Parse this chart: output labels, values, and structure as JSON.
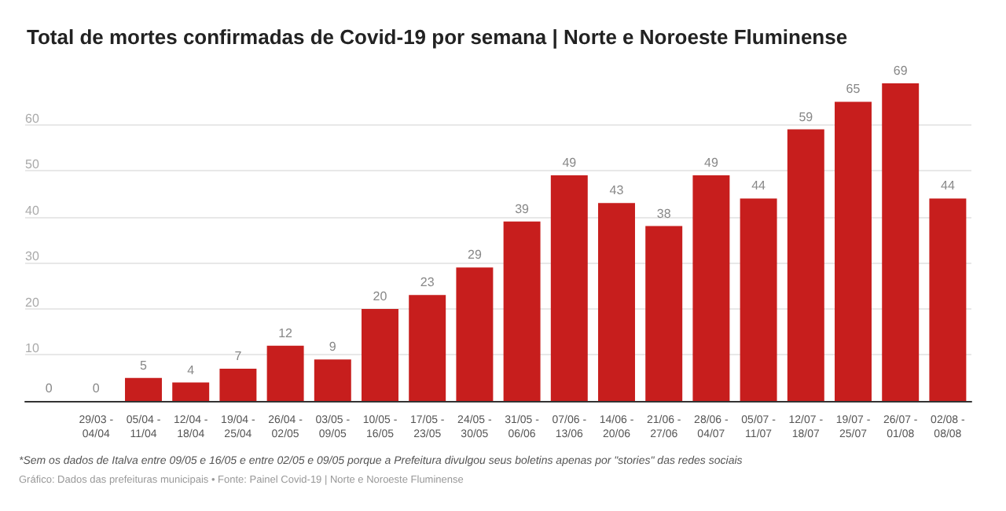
{
  "chart_data": {
    "type": "bar",
    "title": "Total de mortes confirmadas de Covid-19 por semana | Norte e Noroeste Fluminense",
    "categories": [
      null,
      "29/03 - 04/04",
      "05/04 - 11/04",
      "12/04 - 18/04",
      "19/04 - 25/04",
      "26/04 - 02/05",
      "03/05 - 09/05",
      "10/05 - 16/05",
      "17/05 - 23/05",
      "24/05 - 30/05",
      "31/05 - 06/06",
      "07/06 - 13/06",
      "14/06 - 20/06",
      "21/06 - 27/06",
      "28/06 - 04/07",
      "05/07 - 11/07",
      "12/07 - 18/07",
      "19/07 - 25/07",
      "26/07 - 01/08",
      "02/08 - 08/08"
    ],
    "values": [
      0,
      0,
      5,
      4,
      7,
      12,
      9,
      20,
      23,
      29,
      39,
      49,
      43,
      38,
      49,
      44,
      59,
      65,
      69,
      44
    ],
    "color": "#c71e1d",
    "data_labels": true,
    "ylim": [
      0,
      69
    ],
    "yticks": [
      {
        "value": 0,
        "label": null
      },
      10,
      20,
      30,
      40,
      50,
      60
    ],
    "grid": "y",
    "annotations": [
      "*Sem os dados de Italva entre 09/05 e 16/05 e entre 02/05 e 09/05 porque a Prefeitura divulgou seus boletins apenas por \"stories\" das redes sociais",
      "Gráfico: Dados das prefeituras municipais • Fonte: Painel Covid-19 | Norte e Noroeste Fluminense"
    ]
  }
}
